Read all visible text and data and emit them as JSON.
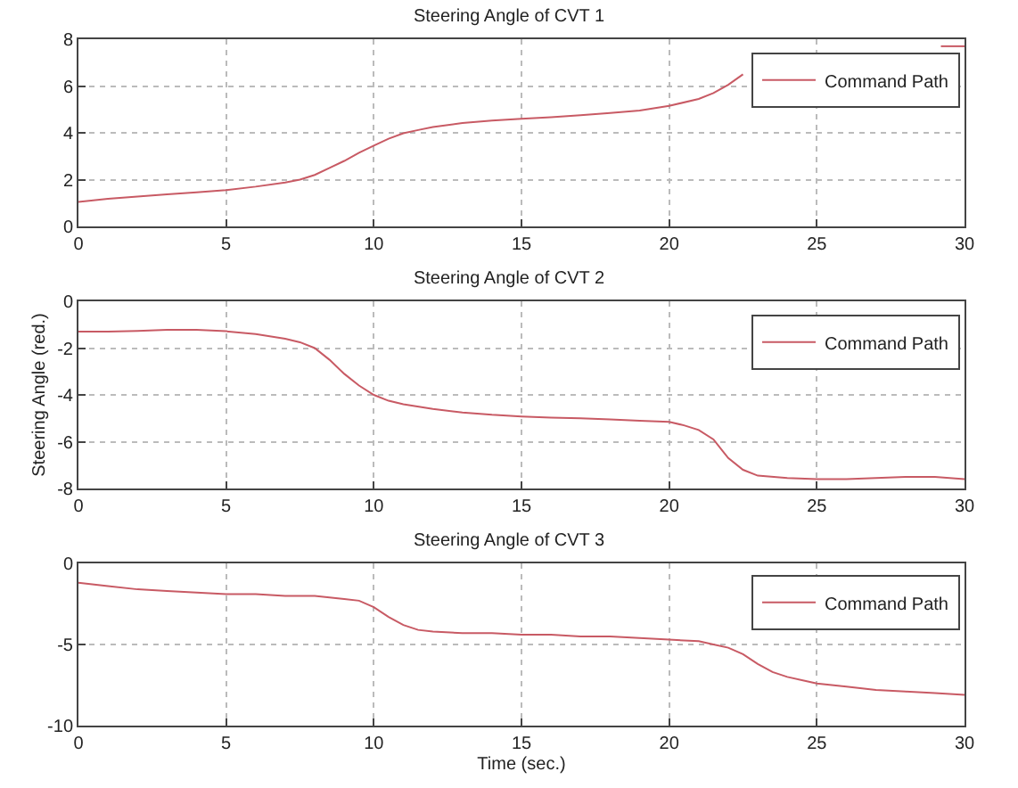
{
  "chart_data": [
    {
      "type": "line",
      "title": "Steering Angle of CVT 1",
      "xlim": [
        0,
        30
      ],
      "xticks": [
        0,
        5,
        10,
        15,
        20,
        25,
        30
      ],
      "ylim": [
        0,
        8
      ],
      "yticks": [
        0,
        2,
        4,
        6,
        8
      ],
      "grid": true,
      "legend": "top right",
      "series": [
        {
          "name": "Command Path",
          "color": "#c85a64",
          "x": [
            0,
            1,
            2,
            3,
            4,
            5,
            6,
            7,
            7.5,
            8,
            8.5,
            9,
            9.5,
            10,
            10.5,
            11,
            11.5,
            12,
            13,
            14,
            15,
            16,
            17,
            18,
            19,
            20,
            21,
            21.5,
            22,
            22.5,
            23,
            29.2,
            30
          ],
          "values": [
            1.05,
            1.18,
            1.28,
            1.37,
            1.46,
            1.55,
            1.7,
            1.88,
            2.0,
            2.2,
            2.5,
            2.8,
            3.15,
            3.45,
            3.75,
            3.98,
            4.12,
            4.25,
            4.42,
            4.52,
            4.6,
            4.67,
            4.75,
            4.85,
            4.95,
            5.15,
            5.45,
            5.7,
            6.05,
            6.5,
            null,
            7.7,
            7.7
          ]
        }
      ]
    },
    {
      "type": "line",
      "title": "Steering Angle of CVT 2",
      "ylabel": "Steering Angle (red.)",
      "xlim": [
        0,
        30
      ],
      "xticks": [
        0,
        5,
        10,
        15,
        20,
        25,
        30
      ],
      "ylim": [
        -8,
        0
      ],
      "yticks": [
        -8,
        -6,
        -4,
        -2,
        0
      ],
      "grid": true,
      "legend": "top right",
      "series": [
        {
          "name": "Command Path",
          "color": "#c85a64",
          "x": [
            0,
            1,
            2,
            3,
            4,
            5,
            6,
            7,
            7.5,
            8,
            8.5,
            9,
            9.5,
            10,
            10.5,
            11,
            12,
            13,
            14,
            15,
            16,
            17,
            18,
            19,
            20,
            20.5,
            21,
            21.5,
            22,
            22.5,
            23,
            24,
            25,
            26,
            27,
            28,
            29,
            30
          ],
          "values": [
            -1.3,
            -1.3,
            -1.27,
            -1.22,
            -1.22,
            -1.28,
            -1.4,
            -1.6,
            -1.75,
            -2.0,
            -2.5,
            -3.1,
            -3.6,
            -4.0,
            -4.25,
            -4.4,
            -4.6,
            -4.75,
            -4.85,
            -4.92,
            -4.97,
            -5.0,
            -5.05,
            -5.1,
            -5.15,
            -5.3,
            -5.5,
            -5.9,
            -6.7,
            -7.2,
            -7.45,
            -7.55,
            -7.6,
            -7.6,
            -7.55,
            -7.5,
            -7.5,
            -7.6
          ]
        }
      ]
    },
    {
      "type": "line",
      "title": "Steering Angle of CVT 3",
      "xlabel": "Time (sec.)",
      "xlim": [
        0,
        30
      ],
      "xticks": [
        0,
        5,
        10,
        15,
        20,
        25,
        30
      ],
      "ylim": [
        -10,
        0
      ],
      "yticks": [
        -10,
        -5,
        0
      ],
      "grid": true,
      "legend": "top right",
      "series": [
        {
          "name": "Command Path",
          "color": "#c85a64",
          "x": [
            0,
            1,
            2,
            3,
            4,
            5,
            6,
            7,
            8,
            9,
            9.5,
            10,
            10.5,
            11,
            11.5,
            12,
            13,
            14,
            15,
            16,
            17,
            18,
            19,
            20,
            21,
            21.5,
            22,
            22.5,
            23,
            23.5,
            24,
            25,
            26,
            27,
            28,
            29,
            30
          ],
          "values": [
            -1.2,
            -1.4,
            -1.6,
            -1.7,
            -1.8,
            -1.9,
            -1.9,
            -2.0,
            -2.0,
            -2.2,
            -2.3,
            -2.7,
            -3.3,
            -3.8,
            -4.1,
            -4.2,
            -4.3,
            -4.3,
            -4.4,
            -4.4,
            -4.5,
            -4.5,
            -4.6,
            -4.7,
            -4.8,
            -5.0,
            -5.2,
            -5.6,
            -6.2,
            -6.7,
            -7.0,
            -7.4,
            -7.6,
            -7.8,
            -7.9,
            -8.0,
            -8.1
          ]
        }
      ]
    }
  ]
}
